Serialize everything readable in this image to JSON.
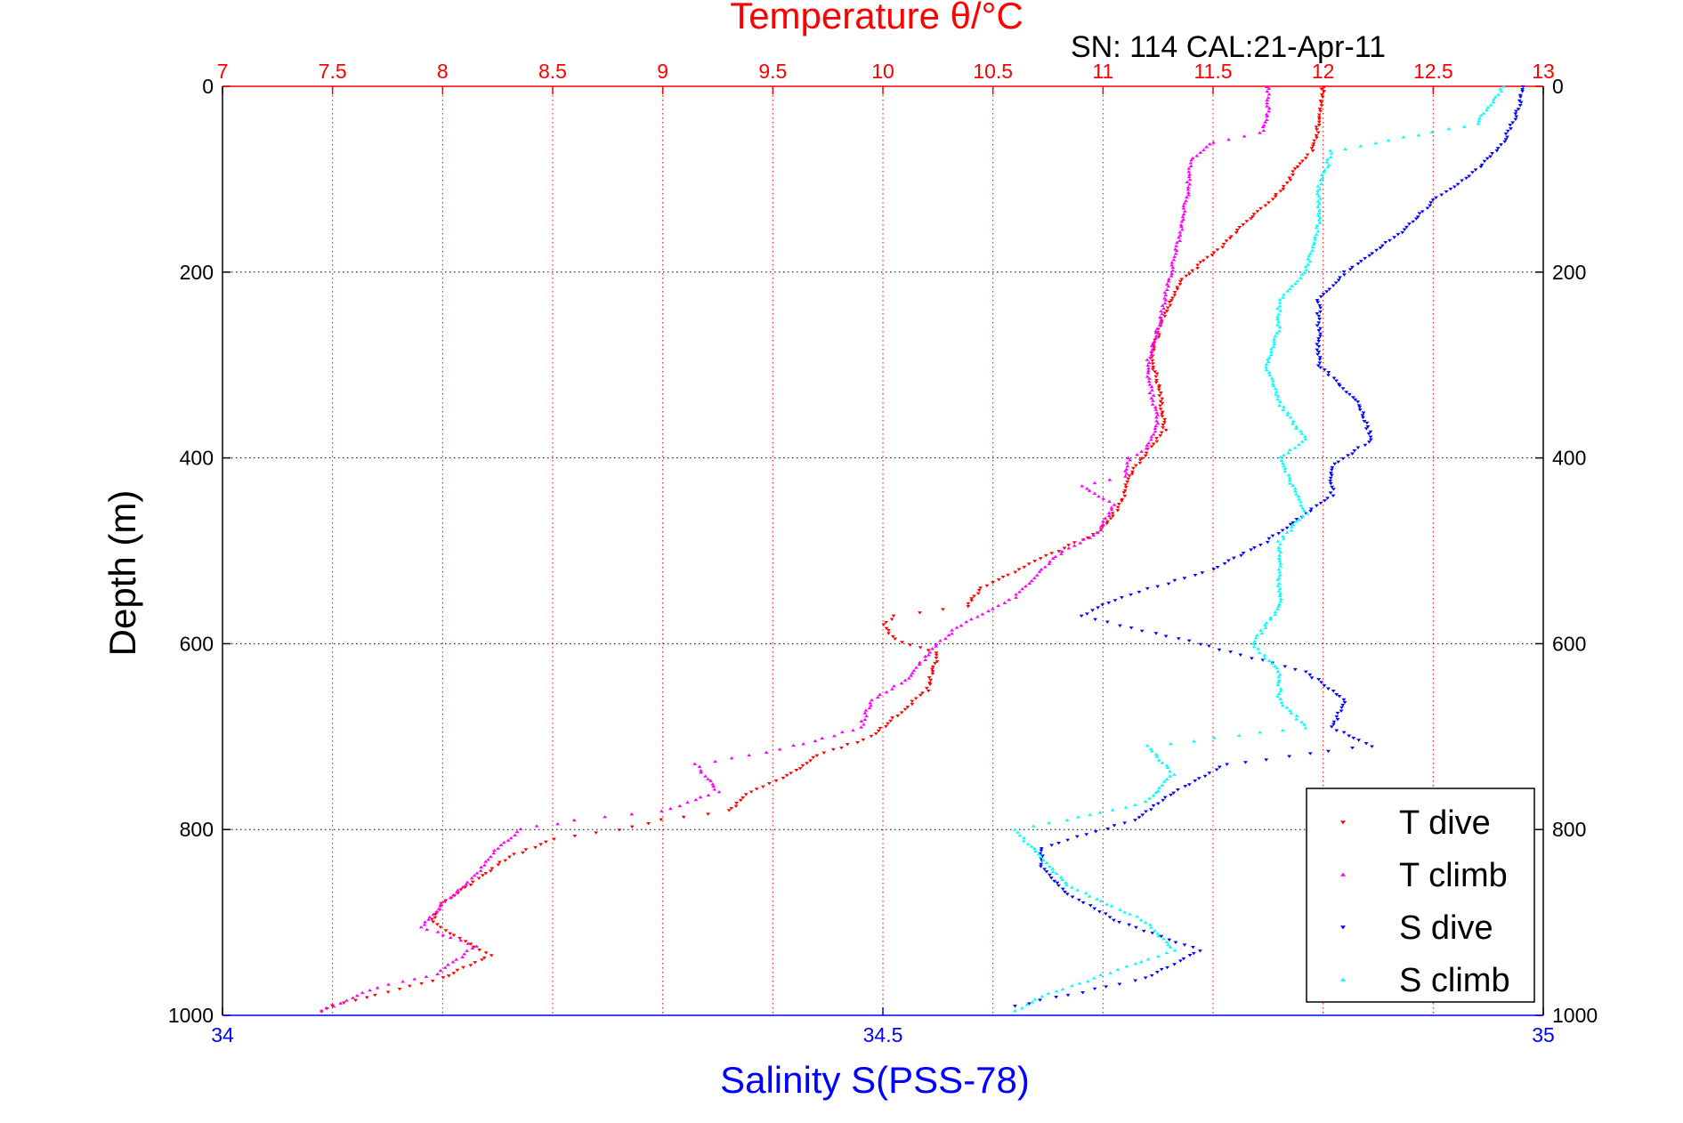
{
  "chart_data": {
    "type": "scatter",
    "title": "Temperature θ/°C",
    "subtitle": "SN: 114  CAL:21-Apr-11",
    "ylabel": "Depth (m)",
    "xlabel": "Salinity S(PSS-78)",
    "y_axis": {
      "range": [
        0,
        1000
      ],
      "reversed": true,
      "ticks": [
        0,
        200,
        400,
        600,
        800,
        1000
      ],
      "tick_labels": [
        "0",
        "200",
        "400",
        "600",
        "800",
        "1000"
      ]
    },
    "temperature_axis": {
      "position": "top",
      "color": "#ff0000",
      "range": [
        7,
        13
      ],
      "ticks": [
        7,
        7.5,
        8,
        8.5,
        9,
        9.5,
        10,
        10.5,
        11,
        11.5,
        12,
        12.5,
        13
      ],
      "tick_labels": [
        "7",
        "7.5",
        "8",
        "8.5",
        "9",
        "9.5",
        "10",
        "10.5",
        "11",
        "11.5",
        "12",
        "12.5",
        "13"
      ]
    },
    "salinity_axis": {
      "position": "bottom",
      "color": "#0000ff",
      "range": [
        34,
        35
      ],
      "ticks": [
        34,
        34.5,
        35
      ],
      "tick_labels": [
        "34",
        "34.5",
        "35"
      ]
    },
    "grid": true,
    "legend": {
      "position": "bottom-right"
    },
    "series": [
      {
        "name": "T dive",
        "axis": "temperature",
        "color": "#ff0000",
        "marker": "triangle-down",
        "points": [
          [
            0,
            12.0
          ],
          [
            30,
            11.99
          ],
          [
            70,
            11.95
          ],
          [
            80,
            11.9
          ],
          [
            110,
            11.82
          ],
          [
            140,
            11.68
          ],
          [
            170,
            11.55
          ],
          [
            190,
            11.45
          ],
          [
            210,
            11.35
          ],
          [
            250,
            11.27
          ],
          [
            290,
            11.22
          ],
          [
            310,
            11.24
          ],
          [
            330,
            11.26
          ],
          [
            350,
            11.27
          ],
          [
            370,
            11.28
          ],
          [
            400,
            11.18
          ],
          [
            420,
            11.12
          ],
          [
            450,
            11.08
          ],
          [
            480,
            10.98
          ],
          [
            500,
            10.8
          ],
          [
            520,
            10.62
          ],
          [
            540,
            10.45
          ],
          [
            560,
            10.38
          ],
          [
            570,
            10.05
          ],
          [
            580,
            10.0
          ],
          [
            595,
            10.05
          ],
          [
            610,
            10.25
          ],
          [
            650,
            10.2
          ],
          [
            680,
            10.05
          ],
          [
            700,
            9.95
          ],
          [
            720,
            9.7
          ],
          [
            745,
            9.55
          ],
          [
            760,
            9.4
          ],
          [
            780,
            9.3
          ],
          [
            790,
            9.0
          ],
          [
            800,
            8.8
          ],
          [
            810,
            8.5
          ],
          [
            830,
            8.3
          ],
          [
            850,
            8.18
          ],
          [
            880,
            8.0
          ],
          [
            900,
            7.95
          ],
          [
            920,
            8.1
          ],
          [
            935,
            8.22
          ],
          [
            960,
            8.0
          ],
          [
            975,
            7.75
          ],
          [
            990,
            7.5
          ],
          [
            996,
            7.45
          ]
        ]
      },
      {
        "name": "T climb",
        "axis": "temperature",
        "color": "#ff00ff",
        "marker": "triangle-up",
        "points": [
          [
            0,
            11.75
          ],
          [
            30,
            11.75
          ],
          [
            50,
            11.72
          ],
          [
            60,
            11.5
          ],
          [
            80,
            11.4
          ],
          [
            120,
            11.38
          ],
          [
            160,
            11.35
          ],
          [
            210,
            11.3
          ],
          [
            260,
            11.25
          ],
          [
            300,
            11.2
          ],
          [
            330,
            11.22
          ],
          [
            360,
            11.25
          ],
          [
            390,
            11.2
          ],
          [
            400,
            11.12
          ],
          [
            420,
            11.1
          ],
          [
            430,
            10.9
          ],
          [
            450,
            11.05
          ],
          [
            480,
            10.98
          ],
          [
            500,
            10.82
          ],
          [
            520,
            10.72
          ],
          [
            550,
            10.6
          ],
          [
            580,
            10.35
          ],
          [
            600,
            10.25
          ],
          [
            640,
            10.1
          ],
          [
            660,
            9.95
          ],
          [
            690,
            9.9
          ],
          [
            710,
            9.6
          ],
          [
            720,
            9.4
          ],
          [
            730,
            9.15
          ],
          [
            760,
            9.25
          ],
          [
            780,
            9.0
          ],
          [
            790,
            8.6
          ],
          [
            800,
            8.35
          ],
          [
            820,
            8.25
          ],
          [
            850,
            8.15
          ],
          [
            880,
            8.0
          ],
          [
            905,
            7.9
          ],
          [
            925,
            8.15
          ],
          [
            955,
            7.98
          ],
          [
            970,
            7.7
          ],
          [
            990,
            7.5
          ],
          [
            995,
            7.45
          ]
        ]
      },
      {
        "name": "S dive",
        "axis": "salinity",
        "color": "#0000ff",
        "marker": "triangle-down",
        "points": [
          [
            0,
            34.985
          ],
          [
            30,
            34.98
          ],
          [
            60,
            34.97
          ],
          [
            90,
            34.95
          ],
          [
            120,
            34.92
          ],
          [
            160,
            34.89
          ],
          [
            200,
            34.85
          ],
          [
            230,
            34.83
          ],
          [
            260,
            34.83
          ],
          [
            300,
            34.83
          ],
          [
            340,
            34.86
          ],
          [
            380,
            34.87
          ],
          [
            410,
            34.84
          ],
          [
            440,
            34.84
          ],
          [
            460,
            34.82
          ],
          [
            490,
            34.79
          ],
          [
            520,
            34.75
          ],
          [
            550,
            34.68
          ],
          [
            570,
            34.65
          ],
          [
            580,
            34.68
          ],
          [
            600,
            34.74
          ],
          [
            630,
            34.82
          ],
          [
            660,
            34.85
          ],
          [
            690,
            34.84
          ],
          [
            710,
            34.87
          ],
          [
            730,
            34.76
          ],
          [
            760,
            34.72
          ],
          [
            790,
            34.69
          ],
          [
            820,
            34.62
          ],
          [
            840,
            34.62
          ],
          [
            870,
            34.64
          ],
          [
            900,
            34.68
          ],
          [
            930,
            34.74
          ],
          [
            960,
            34.7
          ],
          [
            990,
            34.6
          ]
        ]
      },
      {
        "name": "S climb",
        "axis": "salinity",
        "color": "#00ffff",
        "marker": "triangle-up",
        "points": [
          [
            0,
            34.97
          ],
          [
            40,
            34.95
          ],
          [
            70,
            34.84
          ],
          [
            110,
            34.83
          ],
          [
            150,
            34.83
          ],
          [
            200,
            34.82
          ],
          [
            230,
            34.8
          ],
          [
            260,
            34.8
          ],
          [
            300,
            34.79
          ],
          [
            340,
            34.8
          ],
          [
            380,
            34.82
          ],
          [
            400,
            34.8
          ],
          [
            430,
            34.81
          ],
          [
            460,
            34.82
          ],
          [
            490,
            34.8
          ],
          [
            520,
            34.8
          ],
          [
            560,
            34.8
          ],
          [
            600,
            34.78
          ],
          [
            630,
            34.8
          ],
          [
            660,
            34.8
          ],
          [
            690,
            34.82
          ],
          [
            710,
            34.7
          ],
          [
            740,
            34.72
          ],
          [
            770,
            34.7
          ],
          [
            790,
            34.64
          ],
          [
            800,
            34.6
          ],
          [
            830,
            34.62
          ],
          [
            860,
            34.64
          ],
          [
            880,
            34.67
          ],
          [
            900,
            34.7
          ],
          [
            930,
            34.72
          ],
          [
            960,
            34.66
          ],
          [
            980,
            34.62
          ],
          [
            995,
            34.6
          ]
        ]
      }
    ]
  }
}
